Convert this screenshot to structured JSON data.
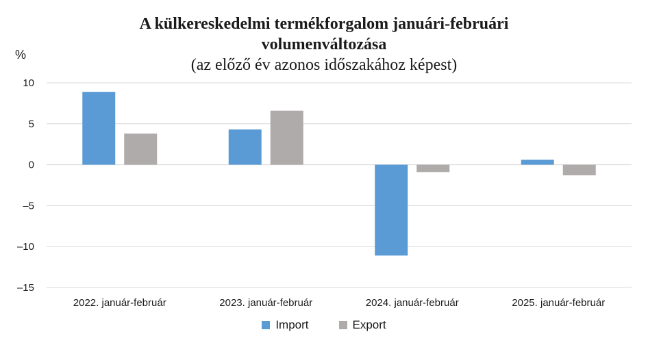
{
  "chart_data": {
    "type": "bar",
    "title": "A külkereskedelmi termékforgalom januári-februári volumenváltozása",
    "title_lines": [
      "A külkereskedelmi termékforgalom januári-februári",
      "volumenváltozása"
    ],
    "subtitle": "(az előző év azonos időszakához képest)",
    "ylabel": "%",
    "xlabel": "",
    "ylim": [
      -15,
      10
    ],
    "yticks": [
      10,
      5,
      0,
      -5,
      -10,
      -15
    ],
    "ytick_labels": [
      "10",
      "5",
      "0",
      "–5",
      "–10",
      "–15"
    ],
    "grid": true,
    "legend_position": "bottom",
    "categories": [
      "2022. január-február",
      "2023. január-február",
      "2024. január-február",
      "2025. január-február"
    ],
    "series": [
      {
        "name": "Import",
        "color": "#5b9bd5",
        "values": [
          8.9,
          4.3,
          -11.1,
          0.6
        ]
      },
      {
        "name": "Export",
        "color": "#afabab",
        "values": [
          3.8,
          6.6,
          -0.9,
          -1.3
        ]
      }
    ]
  }
}
